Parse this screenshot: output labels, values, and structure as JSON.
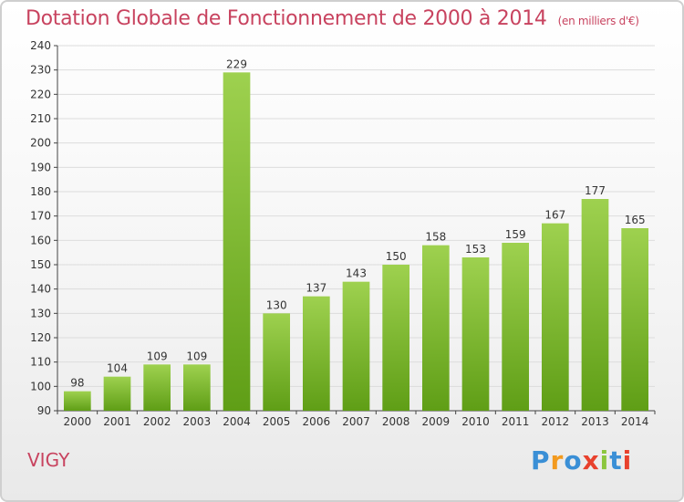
{
  "header": {
    "title": "Dotation Globale de Fonctionnement de 2000 à 2014",
    "subtitle": "(en milliers d'€)"
  },
  "footer": {
    "commune": "VIGY",
    "logo": "Proxiti"
  },
  "colors": {
    "bar_top": "#9ed14f",
    "bar_bottom": "#5f9e16",
    "title": "#c8435f",
    "grid": "#dcdcdc"
  },
  "chart_data": {
    "type": "bar",
    "categories": [
      "2000",
      "2001",
      "2002",
      "2003",
      "2004",
      "2005",
      "2006",
      "2007",
      "2008",
      "2009",
      "2010",
      "2011",
      "2012",
      "2013",
      "2014"
    ],
    "values": [
      98,
      104,
      109,
      109,
      229,
      130,
      137,
      143,
      150,
      158,
      153,
      159,
      167,
      177,
      165
    ],
    "title": "Dotation Globale de Fonctionnement de 2000 à 2014",
    "xlabel": "",
    "ylabel": "",
    "ylim": [
      90,
      240
    ],
    "yticks": [
      90,
      100,
      110,
      120,
      130,
      140,
      150,
      160,
      170,
      180,
      190,
      200,
      210,
      220,
      230,
      240
    ],
    "grid": true,
    "data_labels": true
  }
}
